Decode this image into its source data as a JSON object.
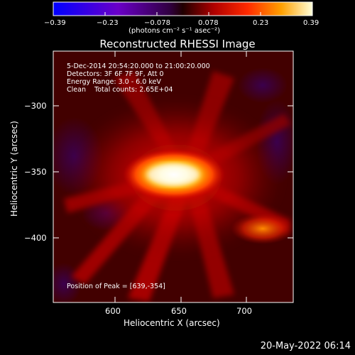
{
  "chart_data": {
    "type": "heatmap",
    "title": "Reconstructed RHESSI Image",
    "xlabel": "Heliocentric X (arcsec)",
    "ylabel": "Heliocentric Y (arcsec)",
    "xlim": [
      557,
      741
    ],
    "ylim": [
      -450,
      -268
    ],
    "x_ticks": [
      "600",
      "650",
      "700"
    ],
    "y_ticks": [
      "-300",
      "-350",
      "-400"
    ],
    "colorbar": {
      "ticks": [
        "-0.39",
        "-0.23",
        "-0.078",
        "0.078",
        "0.23",
        "0.39"
      ],
      "range": [
        -0.39,
        0.39
      ],
      "unit": "(photons cm⁻² s⁻¹ asec⁻²)"
    },
    "annotations": {
      "time": "5-Dec-2014 20:54:20.000 to 21:00:20.000",
      "detectors": "Detectors: 3F 6F 7F 9F, Att 0",
      "energy": "Energy Range: 3.0 - 6.0 keV",
      "method": "Clean    Total counts: 2.65E+04",
      "peak": "Position of Peak = [639,-354]"
    },
    "sources": [
      {
        "x": 643,
        "y": -352,
        "value": 0.39
      },
      {
        "x": 725,
        "y": -394,
        "value": 0.16
      }
    ]
  },
  "footer_date": "20-May-2022 06:14"
}
